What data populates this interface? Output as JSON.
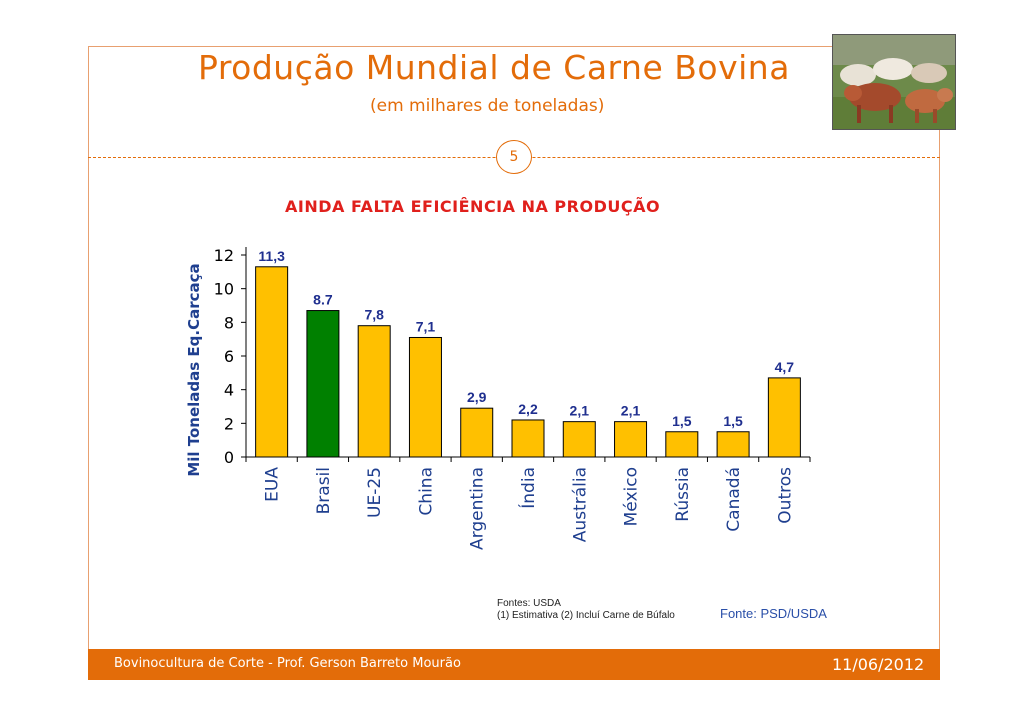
{
  "slide": {
    "title": "Produção Mundial de Carne Bovina",
    "subtitle": "(em milhares de toneladas)",
    "slide_number": "5",
    "headline": "AINDA FALTA EFICIÊNCIA NA PRODUÇÃO",
    "sources_line1": "Fontes: USDA",
    "sources_line2": "(1) Estimativa  (2) Incluí Carne de Búfalo",
    "fonte_psd": "Fonte: PSD/USDA",
    "footer_left": "Bovinocultura de Corte - Prof. Gerson Barreto Mourão",
    "footer_date": "11/06/2012"
  },
  "photo": {
    "icon": "cattle-herd-photo"
  },
  "colors": {
    "accent": "#e36c09",
    "bar_default": "#ffc000",
    "bar_highlight": "#008000",
    "headline": "#e0201c"
  },
  "chart_data": {
    "type": "bar",
    "ylabel": "Mil Toneladas Eq.Carcaça",
    "ylim": [
      0,
      12
    ],
    "yticks": [
      0,
      2,
      4,
      6,
      8,
      10,
      12
    ],
    "categories": [
      "EUA",
      "Brasil",
      "UE-25",
      "China",
      "Argentina",
      "Índia",
      "Austrália",
      "México",
      "Rússia",
      "Canadá",
      "Outros"
    ],
    "values": [
      11.3,
      8.7,
      7.8,
      7.1,
      2.9,
      2.2,
      2.1,
      2.1,
      1.5,
      1.5,
      4.7
    ],
    "value_labels": [
      "11,3",
      "8.7",
      "7,8",
      "7,1",
      "2,9",
      "2,2",
      "2,1",
      "2,1",
      "1,5",
      "1,5",
      "4,7"
    ],
    "highlight_index": 1
  }
}
